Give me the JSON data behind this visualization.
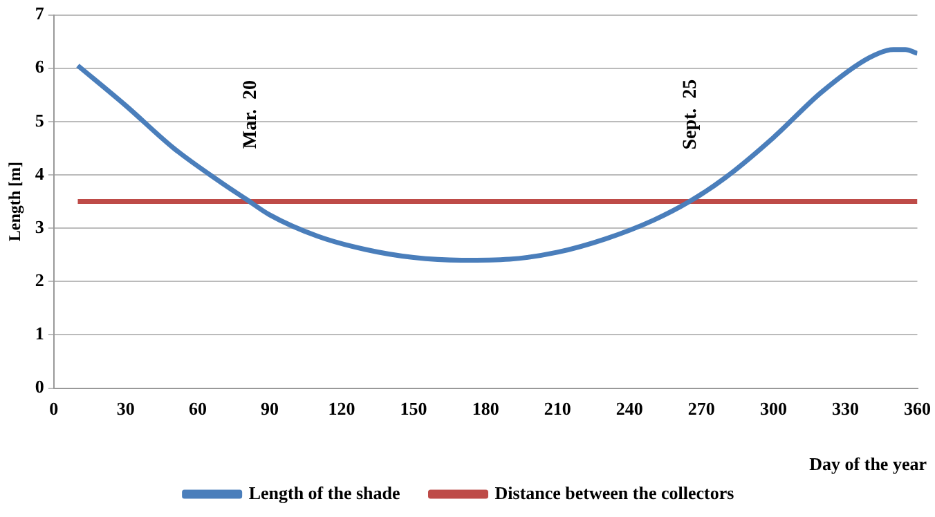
{
  "chart_data": {
    "type": "line",
    "xlabel": "Day of the year",
    "ylabel": "Length [m]",
    "xlim": [
      0,
      360
    ],
    "xticks": [
      0,
      30,
      60,
      90,
      120,
      150,
      180,
      210,
      240,
      270,
      300,
      330,
      360
    ],
    "ylim": [
      0,
      7
    ],
    "yticks": [
      0,
      1,
      2,
      3,
      4,
      5,
      6,
      7
    ],
    "series": [
      {
        "name": "Length of the shade",
        "color": "#4a7ebb",
        "x": [
          10,
          30,
          50,
          70,
          80,
          90,
          110,
          130,
          150,
          170,
          190,
          210,
          230,
          250,
          265,
          280,
          300,
          320,
          340,
          350,
          355,
          360
        ],
        "values": [
          6.05,
          5.3,
          4.5,
          3.85,
          3.55,
          3.25,
          2.85,
          2.6,
          2.45,
          2.4,
          2.42,
          2.55,
          2.8,
          3.15,
          3.5,
          3.95,
          4.7,
          5.55,
          6.2,
          6.35,
          6.35,
          6.28
        ]
      },
      {
        "name": "Distance between the collectors",
        "color": "#be4b48",
        "x": [
          10,
          360
        ],
        "values": [
          3.5,
          3.5
        ]
      }
    ],
    "annotations": [
      "Mar.  20",
      "Sept.  25"
    ],
    "grid": "y",
    "legend": "bottom",
    "marker": "none",
    "line_style": "solid"
  }
}
